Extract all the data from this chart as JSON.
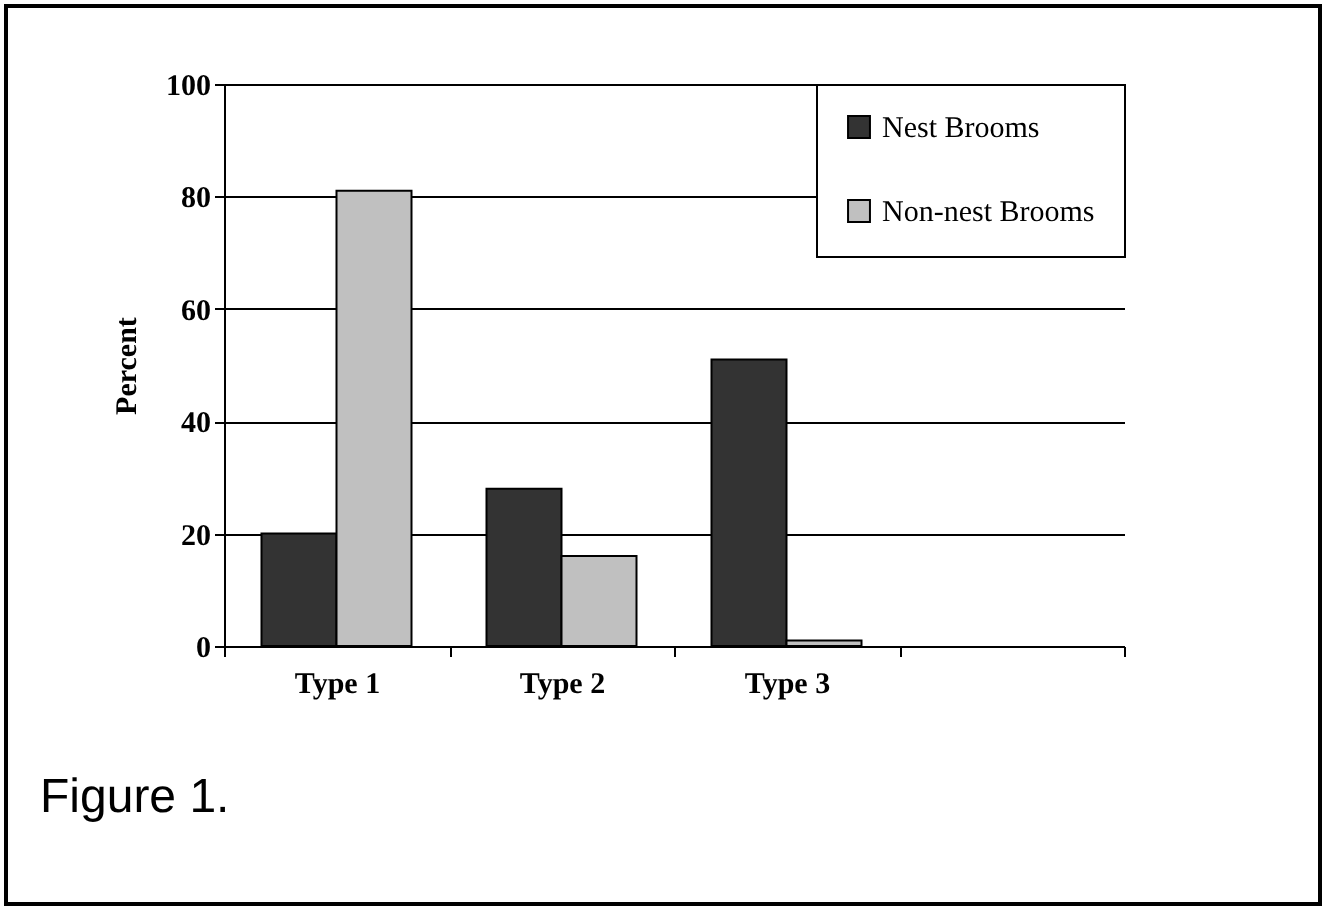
{
  "chart_data": {
    "type": "bar",
    "ylabel": "Percent",
    "categories": [
      "Type 1",
      "Type 2",
      "Type 3",
      null
    ],
    "series": [
      {
        "name": "Nest Brooms",
        "color": "#333333",
        "values": [
          20,
          28,
          51,
          null
        ]
      },
      {
        "name": "Non-nest Brooms",
        "color": "#c0c0c0",
        "values": [
          81,
          16,
          1,
          null
        ]
      }
    ],
    "ylim": [
      0,
      100
    ],
    "yticks": [
      0,
      20,
      40,
      60,
      80,
      100
    ],
    "grid": "y",
    "legend": "top right",
    "annotations": [
      "Figure 1."
    ]
  }
}
